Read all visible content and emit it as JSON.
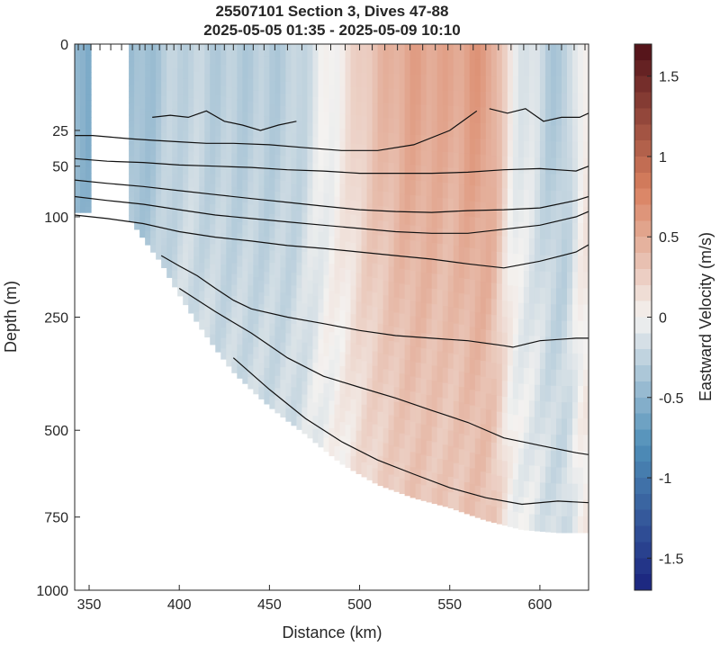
{
  "chart_data": {
    "type": "heatmap",
    "title": "25507101 Section 3, Dives 47-88",
    "subtitle": "2025-05-05 01:35 - 2025-05-09 10:10",
    "xlabel": "Distance (km)",
    "ylabel": "Depth (m)",
    "colorbar_label": "Eastward Velocity (m/s)",
    "xlim": [
      342,
      627
    ],
    "y_scale": "sqrt",
    "ylim": [
      0,
      1000
    ],
    "clim": [
      -1.7,
      1.7
    ],
    "x_ticks": [
      "350",
      "400",
      "450",
      "500",
      "550",
      "600"
    ],
    "x_tick_values": [
      350,
      400,
      450,
      500,
      550,
      600
    ],
    "y_ticks": [
      "0",
      "25",
      "50",
      "100",
      "250",
      "500",
      "750",
      "1000"
    ],
    "y_tick_values": [
      0,
      25,
      50,
      100,
      250,
      500,
      750,
      1000
    ],
    "colorbar_ticks": [
      "1.5",
      "1",
      "0.5",
      "0",
      "-0.5",
      "-1",
      "-1.5"
    ],
    "colorbar_tick_values": [
      1.5,
      1,
      0.5,
      0,
      -0.5,
      -1,
      -1.5
    ],
    "colormap": {
      "negative": "#1a237e",
      "mid_negative": "#4f8fb8",
      "zero": "#f4f2f0",
      "mid_positive": "#d9805f",
      "positive": "#4e0f17"
    },
    "bottom_depth": {
      "x": [
        342,
        352,
        372,
        390,
        410,
        430,
        450,
        470,
        490,
        510,
        530,
        550,
        570,
        590,
        610,
        627
      ],
      "depth": [
        95,
        95,
        100,
        160,
        260,
        360,
        440,
        510,
        590,
        650,
        690,
        720,
        760,
        790,
        800,
        800
      ]
    },
    "data_gap": {
      "x_range": [
        352,
        372
      ],
      "depth_range": [
        0,
        100
      ]
    },
    "dive_markers_x": [
      344,
      347,
      351,
      356,
      362,
      368,
      374,
      378,
      381,
      385,
      389,
      393,
      397,
      401,
      406,
      411,
      416,
      420,
      425,
      430,
      436,
      441,
      447,
      453,
      460,
      468,
      476,
      484,
      492,
      500,
      507,
      514,
      521,
      528,
      535,
      542,
      549,
      556,
      563,
      570,
      577,
      584,
      591,
      598,
      605,
      612,
      619,
      625
    ],
    "velocity_bands": [
      {
        "x_center": 346,
        "x_width": 8,
        "peak": -0.55
      },
      {
        "x_center": 380,
        "x_width": 16,
        "peak": -0.45
      },
      {
        "x_center": 400,
        "x_width": 14,
        "peak": -0.2
      },
      {
        "x_center": 425,
        "x_width": 18,
        "peak": -0.3
      },
      {
        "x_center": 458,
        "x_width": 22,
        "peak": -0.3
      },
      {
        "x_center": 485,
        "x_width": 14,
        "peak": 0.05
      },
      {
        "x_center": 510,
        "x_width": 16,
        "peak": 0.35
      },
      {
        "x_center": 528,
        "x_width": 14,
        "peak": 0.6
      },
      {
        "x_center": 548,
        "x_width": 14,
        "peak": 0.5
      },
      {
        "x_center": 568,
        "x_width": 12,
        "peak": 0.65
      },
      {
        "x_center": 590,
        "x_width": 12,
        "peak": -0.1
      },
      {
        "x_center": 612,
        "x_width": 12,
        "peak": -0.35
      },
      {
        "x_center": 624,
        "x_width": 6,
        "peak": 0.2
      }
    ],
    "contours": [
      {
        "x": [
          385,
          395,
          405,
          415,
          425,
          435,
          445,
          455,
          465
        ],
        "depth": [
          18,
          17,
          18,
          15,
          20,
          22,
          25,
          22,
          20
        ]
      },
      {
        "x": [
          572,
          582,
          592,
          602,
          612,
          622,
          627
        ],
        "depth": [
          14,
          16,
          14,
          20,
          18,
          18,
          16
        ]
      },
      {
        "x": [
          342,
          352,
          362,
          372,
          385,
          400,
          415,
          430,
          450,
          470,
          490,
          510,
          530,
          550,
          565
        ],
        "depth": [
          28,
          28,
          29,
          30,
          31,
          32,
          33,
          33,
          34,
          36,
          38,
          38,
          34,
          25,
          15
        ]
      },
      {
        "x": [
          342,
          360,
          380,
          400,
          420,
          440,
          460,
          480,
          500,
          520,
          540,
          560,
          580,
          600,
          620,
          627
        ],
        "depth": [
          44,
          46,
          47,
          49,
          50,
          51,
          53,
          54,
          56,
          56,
          56,
          55,
          53,
          52,
          54,
          50
        ]
      },
      {
        "x": [
          342,
          360,
          380,
          400,
          420,
          440,
          460,
          480,
          500,
          520,
          540,
          560,
          580,
          600,
          620,
          627
        ],
        "depth": [
          62,
          65,
          68,
          72,
          76,
          80,
          84,
          88,
          92,
          94,
          95,
          93,
          92,
          90,
          82,
          78
        ]
      },
      {
        "x": [
          342,
          360,
          380,
          400,
          420,
          440,
          460,
          480,
          500,
          520,
          540,
          560,
          580,
          600,
          620,
          627
        ],
        "depth": [
          78,
          82,
          86,
          92,
          98,
          102,
          106,
          110,
          114,
          118,
          120,
          120,
          115,
          110,
          100,
          94
        ]
      },
      {
        "x": [
          342,
          360,
          380,
          400,
          420,
          440,
          460,
          480,
          500,
          520,
          540,
          560,
          580,
          600,
          620,
          627
        ],
        "depth": [
          98,
          102,
          108,
          118,
          125,
          130,
          136,
          140,
          145,
          150,
          155,
          162,
          168,
          158,
          145,
          135
        ]
      },
      {
        "x": [
          390,
          400,
          410,
          420,
          430,
          440,
          460,
          480,
          500,
          520,
          540,
          560,
          580,
          585,
          600,
          620,
          627
        ],
        "depth": [
          150,
          165,
          180,
          200,
          220,
          235,
          250,
          262,
          275,
          285,
          290,
          295,
          305,
          308,
          295,
          290,
          290
        ]
      },
      {
        "x": [
          400,
          420,
          440,
          460,
          480,
          500,
          520,
          540,
          560,
          580,
          600,
          620,
          627
        ],
        "depth": [
          200,
          240,
          280,
          330,
          370,
          395,
          420,
          450,
          480,
          520,
          540,
          560,
          565
        ]
      },
      {
        "x": [
          430,
          450,
          470,
          490,
          510,
          530,
          550,
          570,
          590,
          610,
          627
        ],
        "depth": [
          330,
          400,
          470,
          530,
          580,
          620,
          660,
          690,
          710,
          700,
          705
        ]
      }
    ]
  }
}
